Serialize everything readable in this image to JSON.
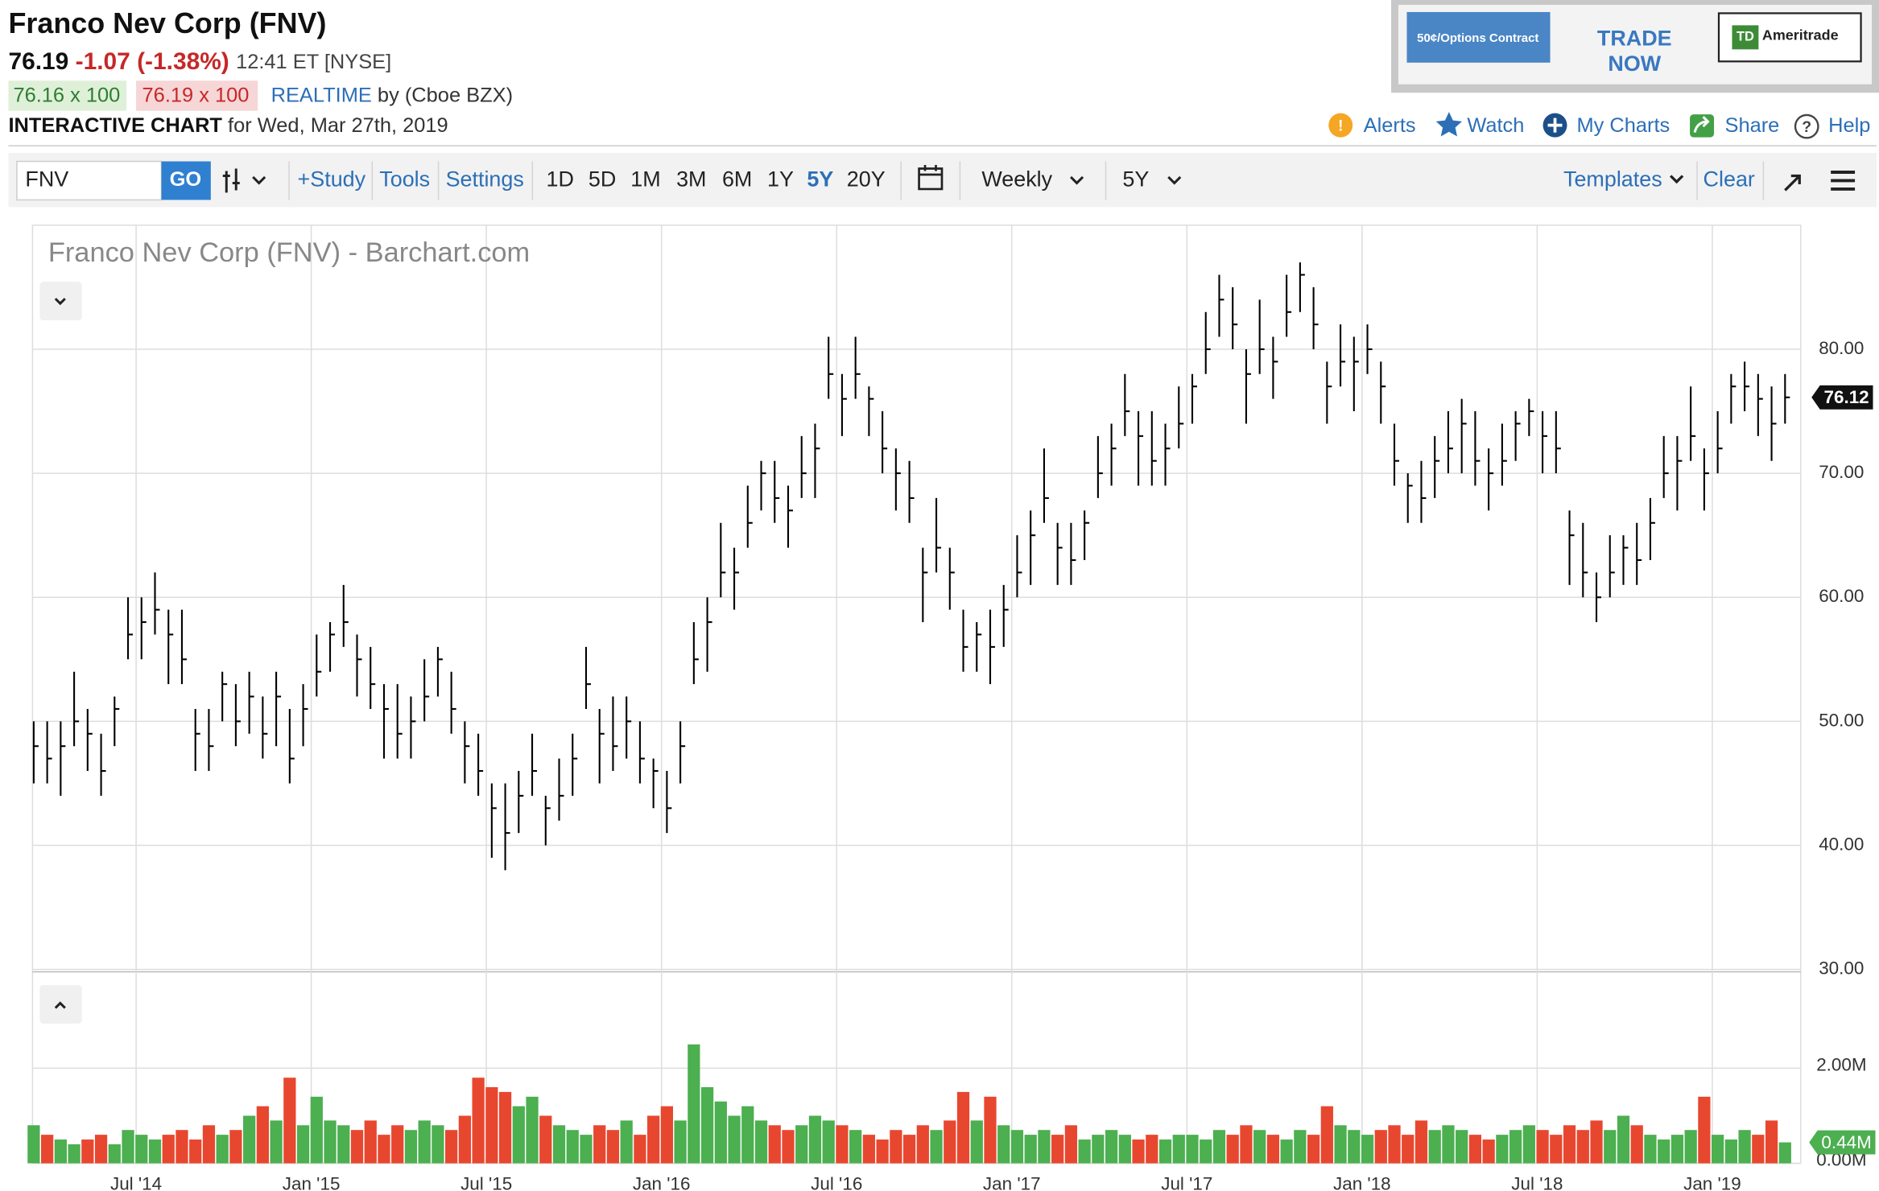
{
  "header": {
    "title": "Franco Nev Corp (FNV)",
    "price": "76.19",
    "change": "-1.07",
    "change_pct": "(-1.38%)",
    "time": "12:41 ET [NYSE]",
    "bid": "76.16 x 100",
    "ask": "76.19 x 100",
    "realtime": "REALTIME",
    "source": "by (Cboe BZX)",
    "chart_label": "INTERACTIVE CHART",
    "date": "for Wed, Mar 27th, 2019"
  },
  "ad": {
    "offer": "50¢/Options Contract",
    "cta_1": "TRADE",
    "cta_2": "NOW",
    "logo": "TD",
    "brand": "Ameritrade"
  },
  "links": [
    "Alerts",
    "Watch",
    "My Charts",
    "Share",
    "Help"
  ],
  "toolbar": {
    "symbol": "FNV",
    "go": "GO",
    "study": "+Study",
    "tools": "Tools",
    "settings": "Settings",
    "periods": [
      "1D",
      "5D",
      "1M",
      "3M",
      "6M",
      "1Y",
      "5Y",
      "20Y"
    ],
    "active_period": "5Y",
    "interval": "Weekly",
    "range": "5Y",
    "templates": "Templates",
    "clear": "Clear"
  },
  "chart_data": [
    {
      "type": "ohlc",
      "title": "Franco Nev Corp (FNV) - Barchart.com",
      "color": "#000000",
      "grid": true,
      "close": [
        48,
        47,
        48,
        50,
        49,
        46,
        51,
        57,
        58,
        59,
        57,
        55,
        49,
        48,
        53,
        50,
        52,
        49,
        52,
        47,
        51,
        54,
        57,
        58,
        55,
        53,
        51,
        49,
        50,
        52,
        55,
        51,
        48,
        46,
        43,
        41,
        44,
        46,
        43,
        44,
        47,
        53,
        49,
        48,
        50,
        47,
        46,
        43,
        48,
        55,
        58,
        62,
        62,
        66,
        70,
        68,
        67,
        70,
        72,
        78,
        76,
        78,
        76,
        72,
        70,
        68,
        62,
        64,
        62,
        56,
        57,
        56,
        59,
        62,
        65,
        68,
        64,
        63,
        66,
        70,
        72,
        75,
        73,
        71,
        72,
        74,
        77,
        80,
        84,
        82,
        78,
        80,
        79,
        83,
        86,
        82,
        77,
        79,
        79,
        80,
        77,
        71,
        69,
        68,
        71,
        72,
        74,
        71,
        70,
        71,
        74,
        75,
        73,
        72,
        65,
        62,
        60,
        62,
        64,
        63,
        66,
        70,
        71,
        73,
        70,
        72,
        77,
        77,
        76,
        74,
        76.12
      ],
      "high": [
        50,
        50,
        50,
        54,
        51,
        49,
        52,
        60,
        60,
        62,
        59,
        59,
        51,
        51,
        54,
        53,
        54,
        52,
        54,
        51,
        53,
        57,
        58,
        61,
        57,
        56,
        53,
        53,
        52,
        55,
        56,
        54,
        50,
        49,
        45,
        45,
        46,
        49,
        44,
        47,
        49,
        56,
        51,
        52,
        52,
        50,
        47,
        46,
        50,
        58,
        60,
        66,
        64,
        69,
        71,
        71,
        69,
        73,
        74,
        81,
        78,
        81,
        77,
        75,
        72,
        71,
        64,
        68,
        64,
        59,
        58,
        59,
        61,
        65,
        67,
        72,
        66,
        66,
        67,
        73,
        74,
        78,
        75,
        75,
        74,
        77,
        78,
        83,
        86,
        85,
        80,
        84,
        81,
        86,
        87,
        85,
        79,
        82,
        81,
        82,
        79,
        74,
        70,
        71,
        73,
        75,
        76,
        75,
        72,
        74,
        75,
        76,
        75,
        75,
        67,
        66,
        62,
        65,
        65,
        66,
        68,
        73,
        73,
        77,
        72,
        75,
        78,
        79,
        78,
        77,
        78
      ],
      "low": [
        45,
        45,
        44,
        48,
        46,
        44,
        48,
        55,
        55,
        57,
        53,
        53,
        46,
        46,
        50,
        48,
        49,
        47,
        48,
        45,
        48,
        52,
        54,
        56,
        52,
        51,
        47,
        47,
        47,
        50,
        52,
        49,
        45,
        44,
        39,
        38,
        41,
        44,
        40,
        42,
        44,
        51,
        45,
        46,
        47,
        45,
        43,
        41,
        45,
        53,
        54,
        60,
        59,
        64,
        67,
        66,
        64,
        68,
        68,
        76,
        73,
        76,
        73,
        70,
        67,
        66,
        58,
        62,
        59,
        54,
        54,
        53,
        56,
        60,
        61,
        66,
        61,
        61,
        63,
        68,
        69,
        73,
        69,
        69,
        69,
        72,
        74,
        78,
        81,
        80,
        74,
        78,
        76,
        81,
        83,
        80,
        74,
        77,
        75,
        78,
        74,
        69,
        66,
        66,
        68,
        70,
        70,
        69,
        67,
        69,
        71,
        73,
        70,
        70,
        61,
        60,
        58,
        60,
        61,
        61,
        63,
        68,
        67,
        71,
        67,
        70,
        74,
        75,
        73,
        71,
        74
      ],
      "last_price": 76.12,
      "ylim": [
        30,
        90
      ],
      "yticks": [
        {
          "value": 30,
          "label": "30.00"
        },
        {
          "value": 40,
          "label": "40.00"
        },
        {
          "value": 50,
          "label": "50.00"
        },
        {
          "value": 60,
          "label": "60.00"
        },
        {
          "value": 70,
          "label": "70.00"
        },
        {
          "value": 80,
          "label": "80.00"
        }
      ],
      "xticks": [
        "Jul '14",
        "Jan '15",
        "Jul '15",
        "Jan '16",
        "Jul '16",
        "Jan '17",
        "Jul '17",
        "Jan '18",
        "Jul '18",
        "Jan '19"
      ]
    },
    {
      "type": "bar",
      "up_color": "#4caf50",
      "down_color": "#e8472f",
      "values": [
        0.8,
        0.6,
        0.5,
        0.4,
        0.5,
        0.6,
        0.4,
        0.7,
        0.6,
        0.5,
        0.6,
        0.7,
        0.5,
        0.8,
        0.6,
        0.7,
        1.0,
        1.2,
        0.9,
        1.8,
        0.8,
        1.4,
        0.9,
        0.8,
        0.7,
        0.9,
        0.6,
        0.8,
        0.7,
        0.9,
        0.8,
        0.7,
        1.0,
        1.8,
        1.6,
        1.5,
        1.2,
        1.4,
        1.0,
        0.8,
        0.7,
        0.6,
        0.8,
        0.7,
        0.9,
        0.6,
        1.0,
        1.2,
        0.9,
        2.5,
        1.6,
        1.3,
        1.0,
        1.2,
        0.9,
        0.8,
        0.7,
        0.8,
        1.0,
        0.9,
        0.8,
        0.7,
        0.6,
        0.5,
        0.7,
        0.6,
        0.8,
        0.7,
        0.9,
        1.5,
        0.9,
        1.4,
        0.8,
        0.7,
        0.6,
        0.7,
        0.6,
        0.8,
        0.5,
        0.6,
        0.7,
        0.6,
        0.5,
        0.6,
        0.5,
        0.6,
        0.6,
        0.5,
        0.7,
        0.6,
        0.8,
        0.7,
        0.6,
        0.5,
        0.7,
        0.6,
        1.2,
        0.8,
        0.7,
        0.6,
        0.7,
        0.8,
        0.6,
        0.9,
        0.7,
        0.8,
        0.7,
        0.6,
        0.5,
        0.6,
        0.7,
        0.8,
        0.7,
        0.6,
        0.8,
        0.7,
        0.9,
        0.7,
        1.0,
        0.8,
        0.6,
        0.5,
        0.6,
        0.7,
        1.4,
        0.6,
        0.5,
        0.7,
        0.6,
        0.9,
        0.44
      ],
      "last_value": {
        "value": 0.44,
        "label": "0.44M"
      },
      "ylim": [
        0,
        4
      ],
      "yticks": [
        {
          "value": 0,
          "label": "0.00M"
        },
        {
          "value": 2,
          "label": "2.00M"
        }
      ]
    }
  ]
}
